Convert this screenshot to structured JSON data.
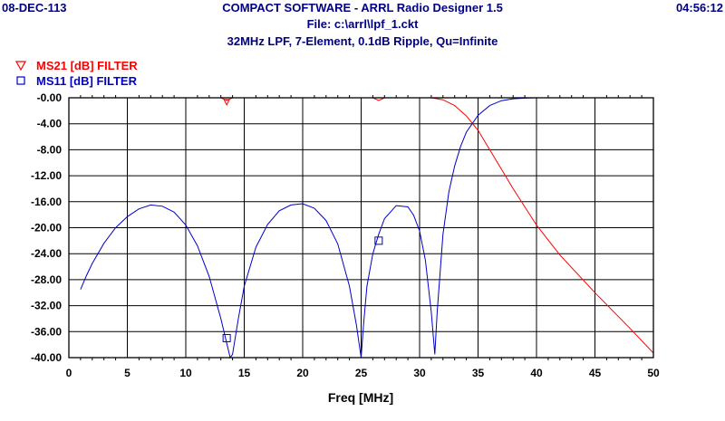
{
  "header": {
    "date": "08-DEC-113",
    "time": "04:56:12",
    "title_line1": "COMPACT SOFTWARE - ARRL Radio Designer 1.5",
    "title_line2": "File: c:\\arrl\\lpf_1.ckt",
    "title_line3": "32MHz LPF, 7-Element, 0.1dB Ripple, Qu=Infinite",
    "text_color": "#000080"
  },
  "chart_data": {
    "type": "line",
    "title": "32MHz LPF, 7-Element, 0.1dB Ripple, Qu=Infinite",
    "xlabel": "Freq [MHz]",
    "ylabel": "",
    "xlim": [
      0,
      50
    ],
    "ylim": [
      -40,
      0
    ],
    "x_ticks": [
      0,
      5,
      10,
      15,
      20,
      25,
      30,
      35,
      40,
      45,
      50
    ],
    "x_tick_labels": [
      "0",
      "5",
      "10",
      "15",
      "20",
      "25",
      "30",
      "35",
      "40",
      "45",
      "50"
    ],
    "y_ticks": [
      0,
      -4,
      -8,
      -12,
      -16,
      -20,
      -24,
      -28,
      -32,
      -36,
      -40
    ],
    "y_tick_labels": [
      "-0.00",
      "-4.00",
      "-8.00",
      "-12.00",
      "-16.00",
      "-20.00",
      "-24.00",
      "-28.00",
      "-32.00",
      "-36.00",
      "-40.00"
    ],
    "grid": true,
    "legend_position": "top-left",
    "series": [
      {
        "name": "MS21 [dB] FILTER",
        "color": "#ff0000",
        "marker": "triangle-down",
        "marker_point": [
          13.5,
          -0.4
        ],
        "x": [
          1,
          5,
          10,
          13,
          13.5,
          14,
          20,
          26,
          26.5,
          27,
          31,
          32,
          33,
          34,
          35,
          36,
          38,
          40,
          42,
          45,
          48,
          50
        ],
        "y": [
          0,
          0,
          0,
          0,
          -0.4,
          0,
          0,
          0,
          -0.4,
          0,
          0,
          -0.3,
          -1.2,
          -2.8,
          -5.0,
          -8.0,
          -14.0,
          -19.6,
          -24.2,
          -30.0,
          -35.5,
          -39.3
        ]
      },
      {
        "name": "MS11 [dB] FILTER",
        "color": "#0000cc",
        "marker": "square",
        "marker_points": [
          [
            13.5,
            -37.0
          ],
          [
            26.5,
            -22.0
          ]
        ],
        "x": [
          1,
          1.5,
          2,
          3,
          4,
          5,
          6,
          7,
          8,
          9,
          10,
          11,
          12,
          13,
          13.8,
          14,
          14.5,
          15,
          16,
          17,
          18,
          19,
          20,
          21,
          22,
          23,
          24,
          24.6,
          25,
          25.2,
          25.5,
          26,
          26.5,
          27,
          28,
          29,
          29.5,
          30,
          30.5,
          31,
          31.3,
          31.5,
          32,
          32.5,
          33,
          33.5,
          34,
          35,
          36,
          37,
          38,
          39,
          40
        ],
        "y": [
          -29.5,
          -27.4,
          -25.5,
          -22.4,
          -20.0,
          -18.3,
          -17.1,
          -16.5,
          -16.7,
          -17.6,
          -19.6,
          -22.8,
          -27.5,
          -34.0,
          -40.0,
          -39.5,
          -34.0,
          -29.0,
          -23.0,
          -19.5,
          -17.4,
          -16.5,
          -16.3,
          -17.0,
          -18.9,
          -22.5,
          -29.0,
          -35.0,
          -40.0,
          -35.0,
          -29.0,
          -24.0,
          -21.0,
          -18.6,
          -16.6,
          -16.8,
          -18.1,
          -20.5,
          -25.0,
          -33.0,
          -39.5,
          -33.0,
          -21.0,
          -14.5,
          -10.5,
          -7.5,
          -5.3,
          -2.7,
          -1.2,
          -0.45,
          -0.15,
          -0.05,
          0
        ]
      }
    ]
  }
}
